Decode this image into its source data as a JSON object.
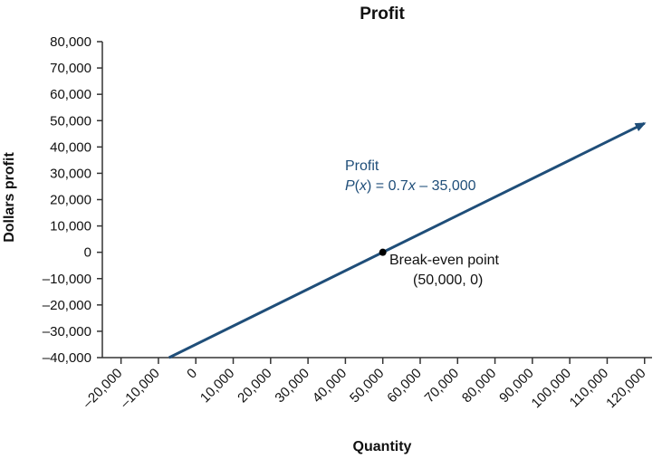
{
  "chart_data": {
    "type": "line",
    "title": "Profit",
    "xlabel": "Quantity",
    "ylabel": "Dollars profit",
    "xlim": [
      -25000,
      122000
    ],
    "ylim": [
      -40000,
      80000
    ],
    "x_ticks": [
      -20000,
      -10000,
      0,
      10000,
      20000,
      30000,
      40000,
      50000,
      60000,
      70000,
      80000,
      90000,
      100000,
      110000,
      120000
    ],
    "x_tick_labels": [
      "–20,000",
      "–10,000",
      "0",
      "10,000",
      "20,000",
      "30,000",
      "40,000",
      "50,000",
      "60,000",
      "70,000",
      "80,000",
      "90,000",
      "100,000",
      "110,000",
      "120,000"
    ],
    "y_ticks": [
      -40000,
      -30000,
      -20000,
      -10000,
      0,
      10000,
      20000,
      30000,
      40000,
      50000,
      60000,
      70000,
      80000
    ],
    "y_tick_labels": [
      "–40,000",
      "–30,000",
      "–20,000",
      "–10,000",
      "0",
      "10,000",
      "20,000",
      "30,000",
      "40,000",
      "50,000",
      "60,000",
      "70,000",
      "80,000"
    ],
    "grid": false,
    "series": [
      {
        "name": "Profit",
        "equation": "P(x) = 0.7x – 35,000",
        "slope": 0.7,
        "intercept": -35000,
        "x": [
          -7143,
          120000
        ],
        "y": [
          -40000,
          49000
        ],
        "arrow_end": true,
        "color": "#1f4e79"
      }
    ],
    "points": [
      {
        "x": 50000,
        "y": 0,
        "label": "Break-even point",
        "coords_label": "(50,000, 0)"
      }
    ],
    "annotations": {
      "line_label_name": "Profit",
      "line_label_eq_prefix": "P",
      "line_label_eq_var": "x",
      "line_label_eq_mid": " = 0.7",
      "line_label_eq_var2": "x",
      "line_label_eq_suffix": " – 35,000"
    }
  }
}
